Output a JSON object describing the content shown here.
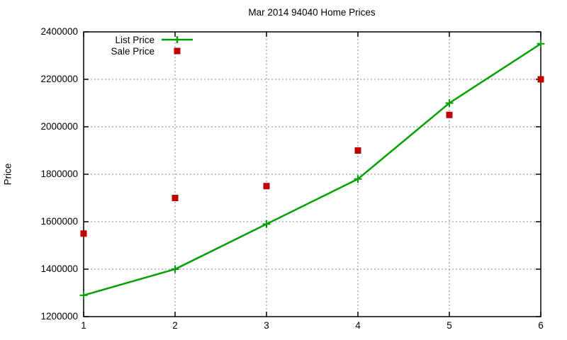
{
  "chart_data": {
    "type": "line",
    "title": "Mar 2014 94040 Home Prices",
    "xlabel": "",
    "ylabel": "Price",
    "x": [
      1,
      2,
      3,
      4,
      5,
      6
    ],
    "series": [
      {
        "name": "List Price",
        "style": "line-with-plus-markers",
        "color": "#00a000",
        "values": [
          1290000,
          1400000,
          1590000,
          1780000,
          2100000,
          2350000
        ]
      },
      {
        "name": "Sale Price",
        "style": "square-points",
        "color": "#c00000",
        "values": [
          1550000,
          1700000,
          1750000,
          1900000,
          2050000,
          2200000
        ]
      }
    ],
    "xlim": [
      1,
      6
    ],
    "ylim": [
      1200000,
      2400000
    ],
    "xticks": [
      "1",
      "2",
      "3",
      "4",
      "5",
      "6"
    ],
    "yticks": [
      "1200000",
      "1400000",
      "1600000",
      "1800000",
      "2000000",
      "2200000",
      "2400000"
    ],
    "grid": true,
    "grid_color": "#8a8a8a",
    "border_color": "#000000",
    "background_color": "#ffffff",
    "legend_position": "inside-top-left"
  }
}
